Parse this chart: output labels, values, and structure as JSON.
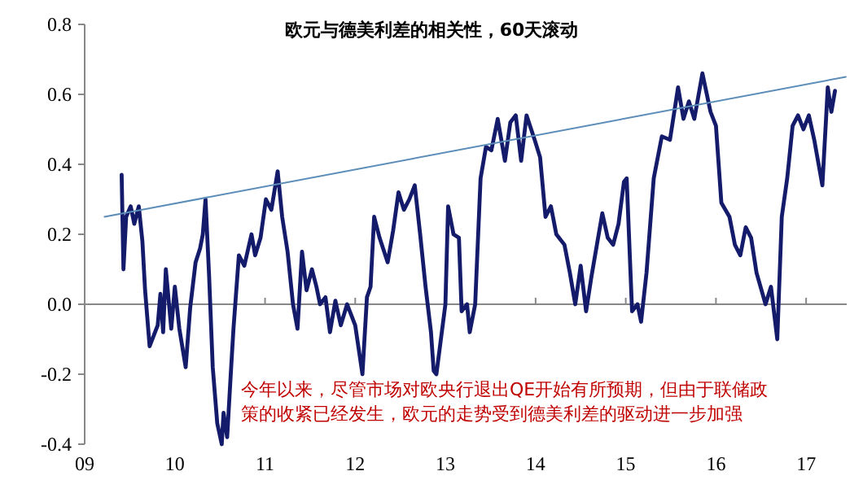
{
  "chart_data": {
    "type": "line",
    "title": "欧元与德美利差的相关性，60天滚动",
    "annotations": [
      "今年以来，尽管市场对欧央行退出QE开始有所预期，但由于联储政策的收紧已经发生，欧元的走势受到德美利差的驱动进一步加强"
    ],
    "xlim": [
      2009,
      2017.45
    ],
    "ylim": [
      -0.4,
      0.8
    ],
    "xticks": [
      {
        "value": 2009,
        "label": "09"
      },
      {
        "value": 2010,
        "label": "10"
      },
      {
        "value": 2011,
        "label": "11"
      },
      {
        "value": 2012,
        "label": "12"
      },
      {
        "value": 2013,
        "label": "13"
      },
      {
        "value": 2014,
        "label": "14"
      },
      {
        "value": 2015,
        "label": "15"
      },
      {
        "value": 2016,
        "label": "16"
      },
      {
        "value": 2017,
        "label": "17"
      }
    ],
    "yticks": [
      {
        "value": -0.4,
        "label": "-0.4"
      },
      {
        "value": -0.2,
        "label": "-0.2"
      },
      {
        "value": 0,
        "label": "0.0"
      },
      {
        "value": 0.2,
        "label": "0.2"
      },
      {
        "value": 0.4,
        "label": "0.4"
      },
      {
        "value": 0.6,
        "label": "0.6"
      },
      {
        "value": 0.8,
        "label": "0.8"
      }
    ],
    "series": [
      {
        "color": "#141b6b",
        "x": [
          2009.41,
          2009.43,
          2009.46,
          2009.51,
          2009.55,
          2009.6,
          2009.64,
          2009.67,
          2009.72,
          2009.81,
          2009.84,
          2009.87,
          2009.9,
          2009.96,
          2010.0,
          2010.05,
          2010.12,
          2010.17,
          2010.23,
          2010.28,
          2010.31,
          2010.34,
          2010.38,
          2010.42,
          2010.47,
          2010.52,
          2010.54,
          2010.58,
          2010.62,
          2010.65,
          2010.71,
          2010.77,
          2010.85,
          2010.89,
          2010.95,
          2011.01,
          2011.07,
          2011.14,
          2011.19,
          2011.25,
          2011.31,
          2011.36,
          2011.41,
          2011.46,
          2011.52,
          2011.57,
          2011.61,
          2011.67,
          2011.72,
          2011.78,
          2011.84,
          2011.91,
          2012.0,
          2012.08,
          2012.13,
          2012.17,
          2012.21,
          2012.27,
          2012.36,
          2012.42,
          2012.48,
          2012.54,
          2012.6,
          2012.66,
          2012.72,
          2012.78,
          2012.84,
          2012.87,
          2012.9,
          2013.0,
          2013.03,
          2013.09,
          2013.15,
          2013.18,
          2013.24,
          2013.27,
          2013.33,
          2013.39,
          2013.45,
          2013.51,
          2013.58,
          2013.66,
          2013.72,
          2013.78,
          2013.84,
          2013.9,
          2013.99,
          2014.05,
          2014.11,
          2014.17,
          2014.23,
          2014.32,
          2014.38,
          2014.44,
          2014.5,
          2014.56,
          2014.62,
          2014.68,
          2014.74,
          2014.8,
          2014.86,
          2014.92,
          2014.98,
          2015.01,
          2015.07,
          2015.13,
          2015.17,
          2015.23,
          2015.31,
          2015.4,
          2015.49,
          2015.58,
          2015.64,
          2015.7,
          2015.76,
          2015.85,
          2015.94,
          2016.0,
          2016.06,
          2016.15,
          2016.21,
          2016.27,
          2016.33,
          2016.39,
          2016.45,
          2016.55,
          2016.61,
          2016.68,
          2016.73,
          2016.79,
          2016.85,
          2016.91,
          2016.97,
          2017.03,
          2017.09,
          2017.18,
          2017.24,
          2017.28,
          2017.32
        ],
        "values": [
          0.37,
          0.1,
          0.25,
          0.28,
          0.23,
          0.28,
          0.18,
          0.04,
          -0.12,
          -0.06,
          0.03,
          -0.08,
          0.1,
          -0.07,
          0.05,
          -0.07,
          -0.18,
          -0.01,
          0.12,
          0.16,
          0.2,
          0.3,
          0.08,
          -0.18,
          -0.34,
          -0.4,
          -0.31,
          -0.38,
          -0.2,
          -0.07,
          0.14,
          0.11,
          0.2,
          0.14,
          0.19,
          0.3,
          0.27,
          0.38,
          0.25,
          0.15,
          0.0,
          -0.07,
          0.15,
          0.04,
          0.1,
          0.05,
          0.0,
          0.02,
          -0.08,
          0.01,
          -0.06,
          0.0,
          -0.06,
          -0.2,
          0.02,
          0.05,
          0.25,
          0.19,
          0.12,
          0.21,
          0.32,
          0.27,
          0.3,
          0.34,
          0.2,
          0.05,
          -0.08,
          -0.19,
          -0.2,
          0.0,
          0.28,
          0.2,
          0.19,
          -0.02,
          0.0,
          -0.08,
          0.0,
          0.36,
          0.45,
          0.44,
          0.53,
          0.41,
          0.52,
          0.54,
          0.41,
          0.54,
          0.47,
          0.42,
          0.25,
          0.28,
          0.2,
          0.17,
          0.09,
          0.0,
          0.11,
          -0.02,
          0.08,
          0.17,
          0.26,
          0.19,
          0.17,
          0.23,
          0.35,
          0.36,
          -0.02,
          0.0,
          -0.05,
          0.09,
          0.36,
          0.48,
          0.47,
          0.62,
          0.53,
          0.58,
          0.53,
          0.66,
          0.55,
          0.51,
          0.29,
          0.25,
          0.17,
          0.14,
          0.22,
          0.19,
          0.09,
          0.0,
          0.05,
          -0.1,
          0.25,
          0.36,
          0.51,
          0.54,
          0.5,
          0.54,
          0.47,
          0.34,
          0.62,
          0.55,
          0.61
        ]
      },
      {
        "color": "#5b8db8",
        "x": [
          2009.22,
          2017.44
        ],
        "values": [
          0.25,
          0.65
        ]
      }
    ]
  }
}
